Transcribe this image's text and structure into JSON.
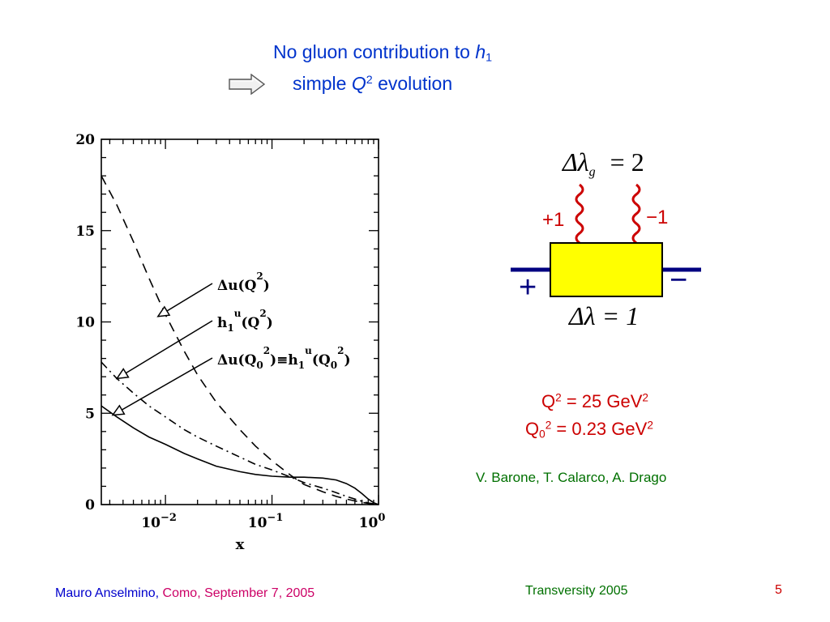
{
  "header": {
    "title_prefix": "No gluon contribution to ",
    "title_symbol": "h",
    "title_symbol_sub": "1",
    "subtitle_prefix": "simple ",
    "subtitle_symbol": "Q",
    "subtitle_symbol_sup": "2",
    "subtitle_suffix": " evolution",
    "arrow_icon": "right-arrow-icon"
  },
  "diagram": {
    "top_label": "Δλ",
    "top_label_sub": "g",
    "top_label_value": "= 2",
    "left_photon_helicity": "+1",
    "right_photon_helicity": "−1",
    "left_quark_helicity": "+",
    "right_quark_helicity": "−",
    "bottom_label": "Δλ = 1",
    "box_color": "#ffff00",
    "line_color": "#000080",
    "photon_color": "#cc0000"
  },
  "scales": {
    "q2_prefix": "Q",
    "q2_sup": "2",
    "q2_value": " = 25 GeV",
    "q2_unit_sup": "2",
    "q02_prefix": "Q",
    "q02_sub": "0",
    "q02_sup": "2",
    "q02_value": " = 0.23 GeV",
    "q02_unit_sup": "2"
  },
  "authors": "V. Barone, T. Calarco, A. Drago",
  "footer": {
    "author": "Mauro Anselmino,",
    "place_date": " Como, September 7, 2005",
    "conference": "Transversity 2005",
    "page": "5"
  },
  "colors": {
    "title": "#0033cc",
    "scales": "#cc0000",
    "authors": "#007000",
    "footer_author": "#0000cc",
    "footer_rest": "#cc0066",
    "conference": "#007000",
    "page": "#cc0000"
  },
  "chart_data": {
    "type": "line",
    "x_scale": "log",
    "xlim": [
      0.0025,
      1.0
    ],
    "ylim": [
      0,
      20
    ],
    "xlabel": "x",
    "ylabel": "",
    "yticks": [
      {
        "value": 0,
        "label": "0"
      },
      {
        "value": 5,
        "label": "5"
      },
      {
        "value": 10,
        "label": "10"
      },
      {
        "value": 15,
        "label": "15"
      },
      {
        "value": 20,
        "label": "20"
      }
    ],
    "xticks": [
      {
        "value": 0.01,
        "base": "10",
        "exp": "−2"
      },
      {
        "value": 0.1,
        "base": "10",
        "exp": "−1"
      },
      {
        "value": 1.0,
        "base": "10",
        "exp": "0"
      }
    ],
    "grid": false,
    "series": [
      {
        "name": "Δu(Q²)",
        "style": "dashed",
        "x": [
          0.0025,
          0.0035,
          0.005,
          0.007,
          0.01,
          0.015,
          0.02,
          0.03,
          0.05,
          0.07,
          0.1,
          0.15,
          0.2,
          0.3,
          0.4,
          0.5,
          0.6,
          0.7,
          0.8,
          0.9,
          1.0
        ],
        "y": [
          18.0,
          16.4,
          14.4,
          12.4,
          10.4,
          8.4,
          7.1,
          5.6,
          4.1,
          3.2,
          2.4,
          1.6,
          1.1,
          0.7,
          0.45,
          0.3,
          0.2,
          0.12,
          0.07,
          0.03,
          0.0
        ]
      },
      {
        "name": "h₁ᵘ(Q²)",
        "style": "dash-dot",
        "x": [
          0.0025,
          0.0035,
          0.005,
          0.007,
          0.01,
          0.015,
          0.02,
          0.03,
          0.05,
          0.07,
          0.1,
          0.15,
          0.2,
          0.3,
          0.4,
          0.5,
          0.6,
          0.7,
          0.8,
          0.9,
          1.0
        ],
        "y": [
          7.8,
          6.9,
          6.1,
          5.4,
          4.8,
          4.1,
          3.7,
          3.2,
          2.6,
          2.2,
          1.9,
          1.5,
          1.2,
          0.9,
          0.65,
          0.45,
          0.3,
          0.18,
          0.09,
          0.04,
          0.0
        ]
      },
      {
        "name": "Δu(Q₀²)≡h₁ᵘ(Q₀²)",
        "style": "solid",
        "x": [
          0.0025,
          0.0035,
          0.005,
          0.007,
          0.01,
          0.015,
          0.02,
          0.03,
          0.05,
          0.07,
          0.1,
          0.15,
          0.2,
          0.3,
          0.4,
          0.5,
          0.6,
          0.7,
          0.8,
          0.9,
          1.0
        ],
        "y": [
          5.4,
          4.8,
          4.2,
          3.7,
          3.3,
          2.8,
          2.5,
          2.1,
          1.8,
          1.65,
          1.55,
          1.5,
          1.5,
          1.45,
          1.35,
          1.15,
          0.9,
          0.6,
          0.3,
          0.1,
          0.0
        ]
      }
    ],
    "annotations": [
      {
        "label_main": "Δu(Q",
        "label_sup": "2",
        "label_end": ")",
        "series": 0,
        "target_x": 0.0085,
        "target_y": 10.3
      },
      {
        "label_main": "h",
        "label_sub": "1",
        "label_sup": "u",
        "label_mid": "(Q",
        "label_sup2": "2",
        "label_end": ")",
        "series": 1,
        "target_x": 0.0035,
        "target_y": 6.9
      },
      {
        "label_main": "Δu(Q",
        "label_sub": "0",
        "label_sup": "2",
        "label_mid": ")≡h",
        "label_sub2": "1",
        "label_sup2": "u",
        "label_mid2": "(Q",
        "label_sub3": "0",
        "label_sup3": "2",
        "label_end": ")",
        "series": 2,
        "target_x": 0.0032,
        "target_y": 4.9
      }
    ]
  }
}
